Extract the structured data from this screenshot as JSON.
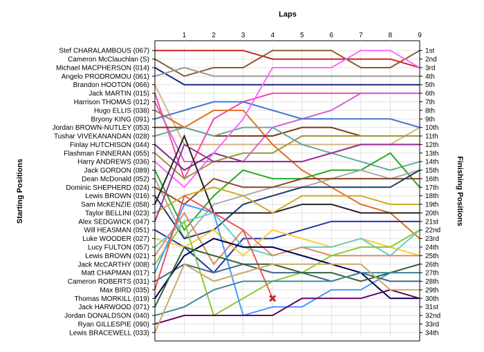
{
  "chart_data": {
    "type": "line",
    "title": "Laps",
    "xlabel": "Laps",
    "ylabel_left": "Starting Positions",
    "ylabel_right": "Finishing Positions",
    "x_ticks": [
      "1",
      "2",
      "3",
      "4",
      "5",
      "6",
      "7",
      "8",
      "9"
    ],
    "xlim": [
      0,
      9
    ],
    "ylim": [
      1,
      34
    ],
    "y_inverted": true,
    "grid": true,
    "starting_positions": [
      "Stef CHARALAMBOUS (067)",
      "Cameron McClauchlan (S)",
      "Michael MACPHERSON (014)",
      "Angelo PRODROMOU (061)",
      "Brandon HOOTON (066)",
      "Jack MARTIN (015)",
      "Harrison THOMAS (012)",
      "Hugo ELLIS (038)",
      "Bryony KING (091)",
      "Jordan BROWN-NUTLEY (053)",
      "Tushar VIVEKANANDAN (028)",
      "Finlay HUTCHISON (044)",
      "Flashman FINNERAN (055)",
      "Harry ANDREWS (036)",
      "Jack GORDON (089)",
      "Dean McDonald (052)",
      "Dominic SHEPHERD (024)",
      "Lewis BROWN (016)",
      "Sam McKENZIE (058)",
      "Taylor BELLINI (023)",
      "Alex SEDGWICK (047)",
      "Will HEASMAN (051)",
      "Luke WOODER (027)",
      "Lucy FULTON (057)",
      "Lewis BROWN (021)",
      "Jack McCARTHY (008)",
      "Matt CHAPMAN (017)",
      "Cameron ROBERTS (031)",
      "Max BIRD (035)",
      "Thomas MORKILL (019)",
      "Jack HARWOOD (071)",
      "Jordan DONALDSON (040)",
      "Ryan GILLESPIE (090)",
      "Lewis BRACEWELL (033)"
    ],
    "finishing_positions": [
      "1st",
      "2nd",
      "3rd",
      "4th",
      "5th",
      "6th",
      "7th",
      "8th",
      "9th",
      "10th",
      "11th",
      "12th",
      "13th",
      "14th",
      "15th",
      "16th",
      "17th",
      "18th",
      "19th",
      "20th",
      "21st",
      "22nd",
      "23rd",
      "24th",
      "25th",
      "26th",
      "27th",
      "28th",
      "29th",
      "30th",
      "31st",
      "32nd",
      "33rd",
      "34th"
    ],
    "series": [
      {
        "color": "#cc2222",
        "values": [
          1,
          1,
          1,
          1,
          2,
          2,
          2,
          2,
          2,
          3
        ]
      },
      {
        "color": "#8b5a2b",
        "values": [
          2,
          4,
          3,
          3,
          1,
          1,
          1,
          3,
          3,
          1
        ]
      },
      {
        "color": "#1a237e",
        "values": [
          3,
          5,
          5,
          5,
          5,
          5,
          5,
          5,
          5,
          5
        ]
      },
      {
        "color": "#999999",
        "values": [
          4,
          3,
          4,
          4,
          4,
          4,
          4,
          4,
          4,
          4
        ]
      },
      {
        "color": "#d2b48c",
        "values": [
          5,
          12,
          12,
          12,
          12,
          12,
          12,
          12,
          12,
          10
        ]
      },
      {
        "color": "#ff44aa",
        "values": [
          6,
          16,
          9,
          7,
          6,
          6,
          6,
          6,
          6,
          6
        ]
      },
      {
        "color": "#cc66cc",
        "values": [
          7,
          14,
          14,
          14,
          10,
          9,
          8,
          6,
          6,
          6
        ]
      },
      {
        "color": "#e07020",
        "values": [
          8,
          10,
          8,
          8,
          12,
          15,
          17,
          19,
          20,
          23
        ]
      },
      {
        "color": "#4477cc",
        "values": [
          9,
          8,
          7,
          7,
          8,
          9,
          9,
          9,
          9,
          10
        ]
      },
      {
        "color": "#7a3b10",
        "values": [
          10,
          10,
          11,
          11,
          11,
          10,
          10,
          11,
          11,
          11
        ]
      },
      {
        "color": "#66aa99",
        "values": [
          11,
          10,
          11,
          10,
          10,
          12,
          13,
          14,
          15,
          14
        ]
      },
      {
        "color": "#7b2c7b",
        "values": [
          12,
          15,
          13,
          14,
          14,
          14,
          13,
          12,
          12,
          12
        ]
      },
      {
        "color": "#999933",
        "values": [
          13,
          16,
          14,
          13,
          13,
          11,
          11,
          11,
          11,
          11
        ]
      },
      {
        "color": "#ff66ff",
        "values": [
          14,
          17,
          13,
          9,
          3,
          3,
          3,
          1,
          1,
          3
        ]
      },
      {
        "color": "#22aa22",
        "values": [
          15,
          22,
          18,
          15,
          16,
          16,
          15,
          15,
          13,
          17
        ]
      },
      {
        "color": "#aaaaaa",
        "values": [
          16,
          23,
          19,
          18,
          17,
          17,
          16,
          15,
          16,
          15
        ]
      },
      {
        "color": "#884422",
        "values": [
          17,
          19,
          16,
          17,
          17,
          16,
          16,
          16,
          16,
          16
        ]
      },
      {
        "color": "#1a3a6a",
        "values": [
          18,
          23,
          22,
          19,
          18,
          17,
          17,
          17,
          17,
          15
        ]
      },
      {
        "color": "#222222",
        "values": [
          19,
          11,
          20,
          20,
          20,
          19,
          19,
          20,
          20,
          20
        ]
      },
      {
        "color": "#ccaa22",
        "values": [
          20,
          18,
          17,
          18,
          20,
          18,
          18,
          18,
          19,
          19
        ]
      },
      {
        "color": "#993399",
        "values": [
          21,
          12,
          14,
          14,
          14,
          14,
          13,
          12,
          12,
          12
        ]
      },
      {
        "color": "#2233aa",
        "values": [
          22,
          24,
          27,
          23,
          23,
          22,
          21,
          21,
          21,
          21
        ]
      },
      {
        "color": "#ffcc33",
        "values": [
          23,
          24,
          22,
          25,
          22,
          23,
          24,
          23,
          24,
          25
        ]
      },
      {
        "color": "#66cccc",
        "values": [
          24,
          21,
          20,
          24,
          25,
          24,
          24,
          23,
          25,
          22
        ]
      },
      {
        "color": "#dd8866",
        "values": [
          25,
          20,
          26,
          22,
          25,
          24,
          25,
          25,
          25,
          25
        ]
      },
      {
        "color": "#88cc33",
        "values": [
          26,
          21,
          32,
          30,
          28,
          27,
          25,
          24,
          24,
          22
        ]
      },
      {
        "color": "#4499ff",
        "values": [
          27,
          19,
          20,
          32,
          31,
          31,
          29,
          29,
          27,
          27
        ]
      },
      {
        "color": "#446688",
        "values": [
          28,
          26,
          27,
          26,
          27,
          27,
          28,
          27,
          28,
          28
        ]
      },
      {
        "color": "#ee5555",
        "values": [
          29,
          18,
          20,
          22,
          30
        ]
      },
      {
        "color": "#000055",
        "values": [
          30,
          25,
          23,
          24,
          24,
          25,
          26,
          27,
          30,
          30
        ]
      },
      {
        "color": "#336633",
        "values": [
          31,
          24,
          25,
          26,
          26,
          27,
          27,
          28,
          27,
          26
        ]
      },
      {
        "color": "#448899",
        "values": [
          32,
          31,
          29,
          28,
          28,
          28,
          28,
          27,
          27,
          27
        ]
      },
      {
        "color": "#660066",
        "values": [
          33,
          32,
          32,
          32,
          32,
          30,
          30,
          30,
          29,
          30
        ]
      },
      {
        "color": "#ccaa66",
        "values": [
          34,
          26,
          28,
          27,
          26,
          26,
          26,
          26,
          29,
          29
        ]
      }
    ],
    "retired_marker": {
      "lap": 4,
      "position": 30,
      "color": "#cc2222"
    }
  }
}
